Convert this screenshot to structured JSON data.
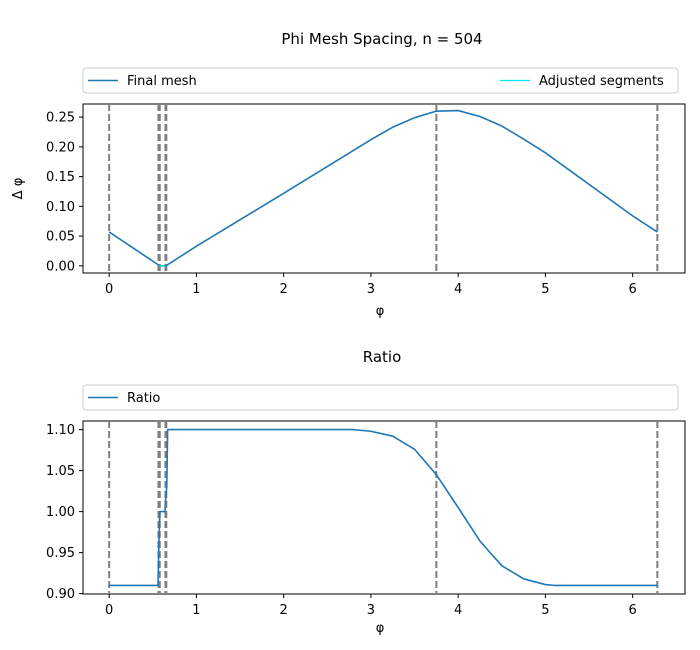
{
  "chart_data": [
    {
      "type": "line",
      "title": "Phi Mesh Spacing, n = 504",
      "xlabel": "φ",
      "ylabel": "Δ φ",
      "xlim": [
        -0.3,
        6.6
      ],
      "ylim": [
        -0.012,
        0.272
      ],
      "xticks": [
        0,
        1,
        2,
        3,
        4,
        5,
        6
      ],
      "yticks": [
        0.0,
        0.05,
        0.1,
        0.15,
        0.2,
        0.25
      ],
      "ytick_labels": [
        "0.00",
        "0.05",
        "0.10",
        "0.15",
        "0.20",
        "0.25"
      ],
      "grid": false,
      "legend": "top, spanning full width",
      "vlines": [
        0.0,
        0.565,
        0.58,
        0.645,
        0.655,
        3.75,
        6.283
      ],
      "series": [
        {
          "name": "Final mesh",
          "color": "#1f77b4",
          "x": [
            0.0,
            0.57,
            0.58,
            0.6,
            0.63,
            0.65,
            0.66,
            1.0,
            2.0,
            3.0,
            3.25,
            3.5,
            3.75,
            4.0,
            4.25,
            4.5,
            4.75,
            5.0,
            6.0,
            6.283
          ],
          "y": [
            0.057,
            0.001,
            0.0,
            0.0,
            0.0,
            0.0,
            0.001,
            0.033,
            0.122,
            0.212,
            0.233,
            0.249,
            0.26,
            0.261,
            0.251,
            0.235,
            0.213,
            0.19,
            0.084,
            0.057
          ]
        },
        {
          "name": "Adjusted segments",
          "color": "#00e5ee",
          "x": [
            0.57,
            0.58,
            0.6,
            0.63,
            0.65
          ],
          "y": [
            0.001,
            0.0,
            0.0,
            0.0,
            0.0
          ]
        }
      ]
    },
    {
      "type": "line",
      "title": "Ratio",
      "xlabel": "φ",
      "ylabel": "",
      "xlim": [
        -0.3,
        6.6
      ],
      "ylim": [
        0.8995,
        1.1105
      ],
      "xticks": [
        0,
        1,
        2,
        3,
        4,
        5,
        6
      ],
      "yticks": [
        0.9,
        0.95,
        1.0,
        1.05,
        1.1
      ],
      "ytick_labels": [
        "0.90",
        "0.95",
        "1.00",
        "1.05",
        "1.10"
      ],
      "grid": false,
      "legend": "top, spanning full width",
      "vlines": [
        0.0,
        0.565,
        0.58,
        0.645,
        0.655,
        3.75,
        6.283
      ],
      "series": [
        {
          "name": "Ratio",
          "color": "#1f77b4",
          "x": [
            0.0,
            0.55,
            0.56,
            0.57,
            0.58,
            0.6,
            0.62,
            0.64,
            0.65,
            0.66,
            0.67,
            1.0,
            2.0,
            2.8,
            3.0,
            3.25,
            3.5,
            3.75,
            4.0,
            4.25,
            4.5,
            4.75,
            5.0,
            5.1,
            6.0,
            6.283
          ],
          "y": [
            0.91,
            0.91,
            0.91,
            0.96,
            1.0,
            1.0,
            1.0,
            1.0,
            1.02,
            1.03,
            1.1,
            1.1,
            1.1,
            1.1,
            1.098,
            1.092,
            1.076,
            1.045,
            1.005,
            0.964,
            0.934,
            0.918,
            0.911,
            0.91,
            0.91,
            0.91
          ]
        }
      ]
    }
  ]
}
